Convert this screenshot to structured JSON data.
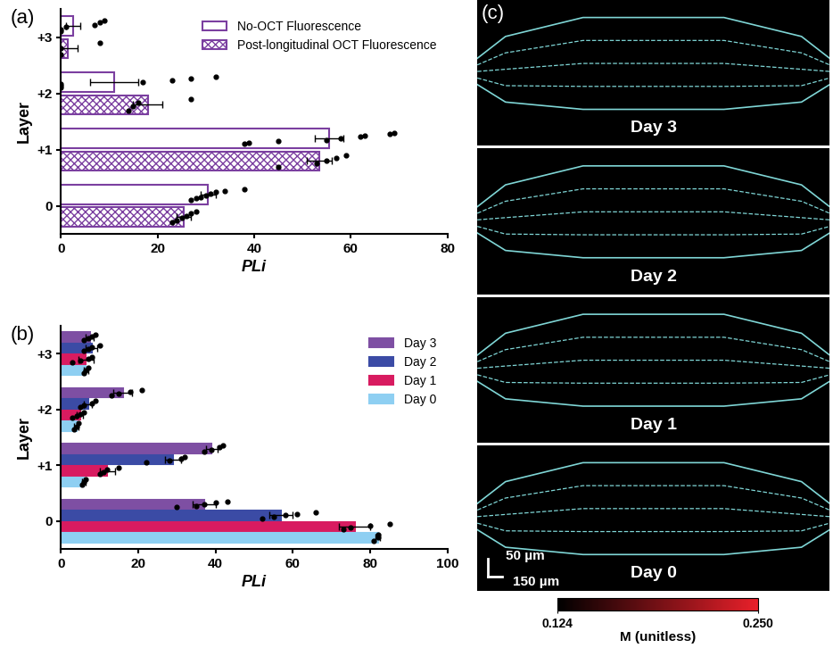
{
  "chart_data": [
    {
      "type": "bar",
      "orientation": "horizontal",
      "title": "(a)",
      "y_label": "Layer",
      "x_label": "PLi",
      "categories": [
        "0",
        "+1",
        "+2",
        "+3"
      ],
      "xlim": [
        0,
        80
      ],
      "xticks": [
        0,
        20,
        40,
        60,
        80
      ],
      "legend": "upper right",
      "series": [
        {
          "name": "No-OCT Fluorescence",
          "color": "#7B3FA0",
          "values": [
            30.5,
            55.5,
            11,
            2.5
          ],
          "errors": [
            1.5,
            3,
            5,
            1.5
          ],
          "points": [
            [
              27,
              28,
              29,
              30,
              31,
              32,
              34,
              38
            ],
            [
              38,
              39,
              45,
              55,
              58,
              62,
              63,
              68,
              69
            ],
            [
              0,
              0,
              0,
              17,
              23,
              27,
              32
            ],
            [
              0,
              0,
              1,
              7,
              8,
              9
            ]
          ]
        },
        {
          "name": "Post-longitudinal OCT Fluorescence",
          "color": "#7B3FA0",
          "values": [
            25.5,
            53.5,
            18,
            1.5
          ],
          "errors": [
            1.5,
            2.5,
            3,
            2
          ],
          "points": [
            [
              23,
              24,
              25,
              26,
              27,
              28
            ],
            [
              45,
              53,
              55,
              57,
              59
            ],
            [
              14,
              15,
              16,
              27
            ],
            [
              0,
              0,
              8
            ]
          ]
        }
      ]
    },
    {
      "type": "bar",
      "orientation": "horizontal",
      "title": "(b)",
      "y_label": "Layer",
      "x_label": "PLi",
      "categories": [
        "0",
        "+1",
        "+2",
        "+3"
      ],
      "xlim": [
        0,
        100
      ],
      "xticks": [
        0,
        20,
        40,
        60,
        80,
        100
      ],
      "legend": "upper right",
      "series": [
        {
          "name": "Day 3",
          "color": "#7E4FA3",
          "values": [
            37,
            39,
            16,
            7.5
          ],
          "errors": [
            3,
            1.5,
            2.5,
            1
          ],
          "points": [
            [
              30,
              35,
              37,
              40,
              43
            ],
            [
              37,
              39,
              41,
              42
            ],
            [
              13,
              15,
              18,
              21
            ],
            [
              6,
              7,
              8,
              9
            ]
          ]
        },
        {
          "name": "Day 2",
          "color": "#3B4BA5",
          "values": [
            57,
            29,
            7,
            8
          ],
          "errors": [
            3,
            2,
            1,
            1.5
          ],
          "points": [
            [
              52,
              55,
              58,
              61,
              66
            ],
            [
              22,
              28,
              31,
              32
            ],
            [
              5,
              6,
              8,
              9
            ],
            [
              6,
              7,
              8,
              10
            ]
          ]
        },
        {
          "name": "Day 1",
          "color": "#D81B60",
          "values": [
            76,
            12,
            5,
            6.5
          ],
          "errors": [
            4,
            2,
            0.8,
            2
          ],
          "points": [
            [
              73,
              75,
              80,
              85
            ],
            [
              10,
              11,
              12,
              15
            ],
            [
              3,
              4,
              5,
              6
            ],
            [
              3,
              5,
              7,
              8
            ]
          ]
        },
        {
          "name": "Day 0",
          "color": "#8ECFF2",
          "values": [
            82,
            6,
            4,
            6.5
          ],
          "errors": [
            0.5,
            0.5,
            0.5,
            0.5
          ],
          "points": [
            [
              81,
              82,
              82
            ],
            [
              5.5,
              6,
              6.5
            ],
            [
              3.5,
              4,
              4.5
            ],
            [
              6,
              6.5,
              7
            ]
          ]
        }
      ]
    },
    {
      "type": "image",
      "title": "(c)",
      "panels": [
        "Day 3",
        "Day 2",
        "Day 1",
        "Day 0"
      ],
      "scale_bar": [
        "50 µm",
        "150 µm"
      ],
      "colorbar": {
        "label": "M (unitless)",
        "lim": [
          0.124,
          0.25
        ],
        "ticks": [
          0.124,
          {
            "value": 0.25,
            "label": "0.250"
          }
        ]
      }
    }
  ]
}
